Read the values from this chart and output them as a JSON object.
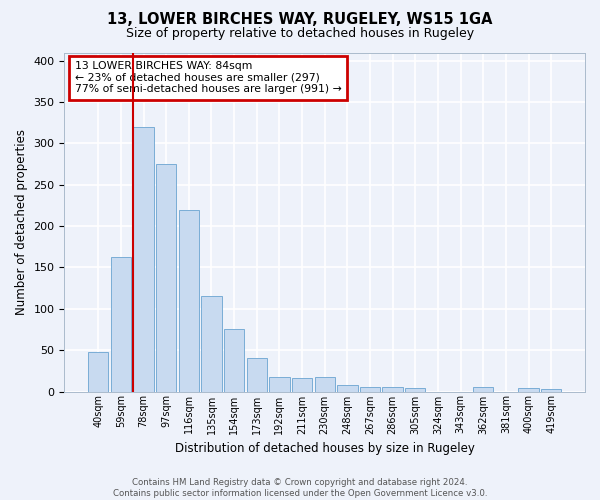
{
  "title": "13, LOWER BIRCHES WAY, RUGELEY, WS15 1GA",
  "subtitle": "Size of property relative to detached houses in Rugeley",
  "xlabel": "Distribution of detached houses by size in Rugeley",
  "ylabel": "Number of detached properties",
  "bin_labels": [
    "40sqm",
    "59sqm",
    "78sqm",
    "97sqm",
    "116sqm",
    "135sqm",
    "154sqm",
    "173sqm",
    "192sqm",
    "211sqm",
    "230sqm",
    "248sqm",
    "267sqm",
    "286sqm",
    "305sqm",
    "324sqm",
    "343sqm",
    "362sqm",
    "381sqm",
    "400sqm",
    "419sqm"
  ],
  "bar_heights": [
    48,
    163,
    320,
    275,
    220,
    115,
    75,
    40,
    17,
    16,
    17,
    8,
    6,
    5,
    4,
    0,
    0,
    5,
    0,
    4,
    3
  ],
  "bar_color": "#c8daf0",
  "bar_edge_color": "#7aadd6",
  "vline_index": 2,
  "vline_color": "#cc0000",
  "ylim": [
    0,
    410
  ],
  "yticks": [
    0,
    50,
    100,
    150,
    200,
    250,
    300,
    350,
    400
  ],
  "annotation_title": "13 LOWER BIRCHES WAY: 84sqm",
  "annotation_line1": "← 23% of detached houses are smaller (297)",
  "annotation_line2": "77% of semi-detached houses are larger (991) →",
  "annotation_box_color": "#cc0000",
  "footer_line1": "Contains HM Land Registry data © Crown copyright and database right 2024.",
  "footer_line2": "Contains public sector information licensed under the Open Government Licence v3.0.",
  "background_color": "#eef2fa",
  "grid_color": "#ffffff"
}
